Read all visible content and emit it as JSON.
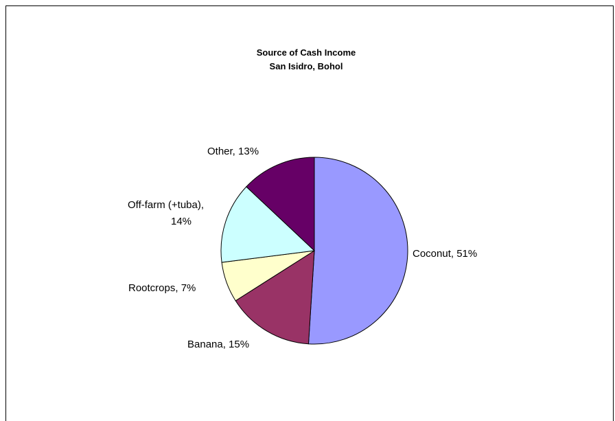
{
  "chart_data": {
    "type": "pie",
    "title": "Source of Cash Income",
    "subtitle": "San Isidro, Bohol",
    "slices": [
      {
        "label": "Coconut, 51%",
        "value": 51,
        "color": "#9999ff"
      },
      {
        "label": "Banana, 15%",
        "value": 15,
        "color": "#993366"
      },
      {
        "label": "Rootcrops, 7%",
        "value": 7,
        "color": "#ffffcc"
      },
      {
        "label": "Off-farm (+tuba),",
        "label2": "14%",
        "value": 14,
        "color": "#ccffff"
      },
      {
        "label": "Other, 13%",
        "value": 13,
        "color": "#660066"
      }
    ],
    "legend": "none"
  }
}
